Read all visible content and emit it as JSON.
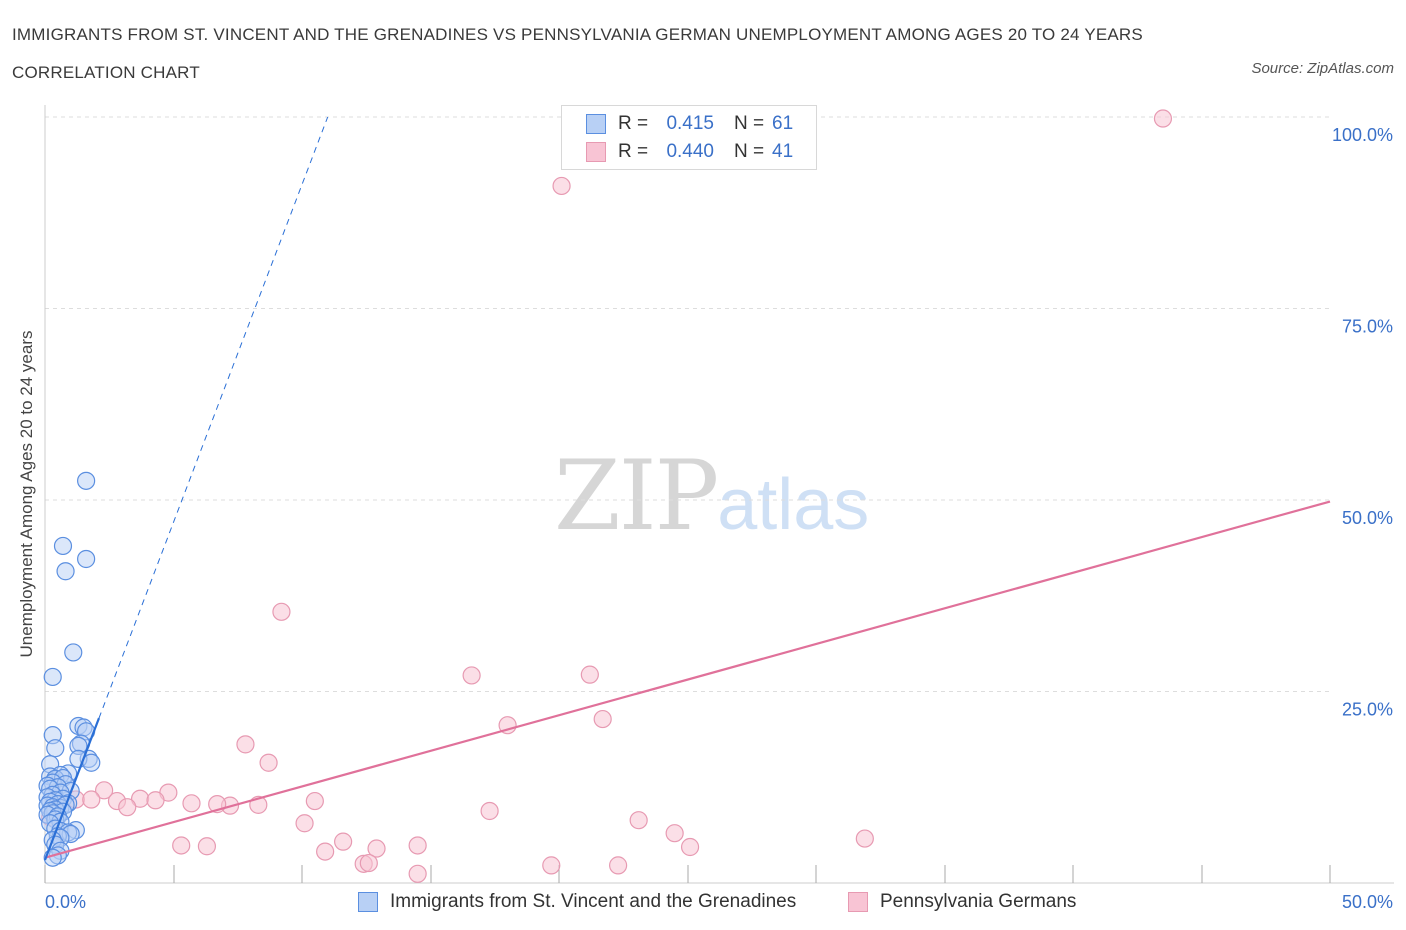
{
  "header": {
    "title": "IMMIGRANTS FROM ST. VINCENT AND THE GRENADINES VS PENNSYLVANIA GERMAN UNEMPLOYMENT AMONG AGES 20 TO 24 YEARS CORRELATION CHART",
    "source": "Source: ZipAtlas.com"
  },
  "watermark": {
    "zip": "ZIP",
    "atlas": "atlas"
  },
  "legend": {
    "r_label": "R =",
    "n_label": "N =",
    "rows": [
      {
        "r": "0.415",
        "n": "61"
      },
      {
        "r": "0.440",
        "n": "41"
      }
    ]
  },
  "colors": {
    "blue_fill": "#b8d0f5",
    "blue_stroke": "#5b8fe0",
    "blue_line": "#2a6fd6",
    "pink_fill": "#f8c4d4",
    "pink_stroke": "#e79ab2",
    "pink_line": "#e0719a",
    "tick_label": "#3a70c8",
    "grid": "#dddddd"
  },
  "chart_data": {
    "type": "scatter",
    "title": "IMMIGRANTS FROM ST. VINCENT AND THE GRENADINES VS PENNSYLVANIA GERMAN UNEMPLOYMENT AMONG AGES 20 TO 24 YEARS CORRELATION CHART",
    "xlabel": "",
    "ylabel": "Unemployment Among Ages 20 to 24 years",
    "xlim": [
      0,
      50
    ],
    "ylim": [
      0,
      100
    ],
    "x_tick_labels": [
      "0.0%",
      "50.0%"
    ],
    "y_tick_labels": [
      "25.0%",
      "50.0%",
      "75.0%",
      "100.0%"
    ],
    "y_tick_values": [
      25,
      50,
      75,
      100
    ],
    "grid": true,
    "legend_position": "top-center",
    "series": [
      {
        "name": "Immigrants from St. Vincent and the Grenadines",
        "R": 0.415,
        "N": 61,
        "trend": {
          "x0": 0,
          "y0": 3,
          "x1": 11,
          "y1": 100,
          "solid_until_x": 2.1
        },
        "points": [
          [
            1.6,
            52.5
          ],
          [
            0.7,
            44.0
          ],
          [
            1.6,
            42.3
          ],
          [
            0.8,
            40.7
          ],
          [
            1.1,
            30.1
          ],
          [
            0.3,
            26.9
          ],
          [
            1.3,
            20.5
          ],
          [
            1.5,
            20.3
          ],
          [
            1.6,
            19.8
          ],
          [
            0.3,
            19.3
          ],
          [
            1.4,
            18.2
          ],
          [
            1.3,
            17.9
          ],
          [
            0.4,
            17.6
          ],
          [
            1.7,
            16.2
          ],
          [
            1.3,
            16.2
          ],
          [
            1.8,
            15.7
          ],
          [
            0.2,
            15.5
          ],
          [
            0.9,
            14.3
          ],
          [
            0.6,
            14.1
          ],
          [
            0.2,
            13.9
          ],
          [
            0.4,
            13.6
          ],
          [
            0.7,
            13.7
          ],
          [
            0.3,
            13.1
          ],
          [
            0.8,
            12.9
          ],
          [
            0.1,
            12.7
          ],
          [
            0.5,
            12.5
          ],
          [
            0.2,
            12.3
          ],
          [
            1.0,
            12.0
          ],
          [
            0.6,
            11.8
          ],
          [
            0.3,
            11.5
          ],
          [
            0.1,
            11.2
          ],
          [
            0.7,
            11.0
          ],
          [
            0.4,
            10.8
          ],
          [
            0.2,
            10.6
          ],
          [
            0.9,
            10.4
          ],
          [
            0.5,
            10.3
          ],
          [
            0.1,
            10.1
          ],
          [
            0.3,
            9.9
          ],
          [
            0.6,
            9.8
          ],
          [
            0.8,
            10.2
          ],
          [
            0.4,
            9.6
          ],
          [
            0.2,
            9.4
          ],
          [
            0.7,
            9.3
          ],
          [
            0.3,
            9.1
          ],
          [
            0.1,
            8.9
          ],
          [
            0.5,
            8.7
          ],
          [
            0.4,
            8.3
          ],
          [
            0.6,
            8.0
          ],
          [
            0.2,
            7.8
          ],
          [
            0.4,
            7.1
          ],
          [
            0.6,
            6.8
          ],
          [
            1.2,
            6.9
          ],
          [
            0.9,
            6.6
          ],
          [
            1.0,
            6.4
          ],
          [
            0.5,
            6.1
          ],
          [
            0.6,
            5.9
          ],
          [
            0.3,
            5.6
          ],
          [
            0.4,
            5.0
          ],
          [
            0.6,
            4.2
          ],
          [
            0.5,
            3.6
          ],
          [
            0.3,
            3.3
          ]
        ]
      },
      {
        "name": "Pennsylvania Germans",
        "R": 0.44,
        "N": 41,
        "trend": {
          "x0": 0,
          "y0": 3.3,
          "x1": 50,
          "y1": 49.8
        },
        "points": [
          [
            43.5,
            99.8
          ],
          [
            20.1,
            91.0
          ],
          [
            9.2,
            35.4
          ],
          [
            16.6,
            27.1
          ],
          [
            21.2,
            27.2
          ],
          [
            18.0,
            20.6
          ],
          [
            21.7,
            21.4
          ],
          [
            7.8,
            18.1
          ],
          [
            8.7,
            15.7
          ],
          [
            2.3,
            12.1
          ],
          [
            4.8,
            11.8
          ],
          [
            1.2,
            10.9
          ],
          [
            3.7,
            11.0
          ],
          [
            4.3,
            10.8
          ],
          [
            2.8,
            10.7
          ],
          [
            1.8,
            10.9
          ],
          [
            7.2,
            10.1
          ],
          [
            10.5,
            10.7
          ],
          [
            8.3,
            10.2
          ],
          [
            6.7,
            10.3
          ],
          [
            3.2,
            9.9
          ],
          [
            5.7,
            10.4
          ],
          [
            0.4,
            9.8
          ],
          [
            17.3,
            9.4
          ],
          [
            0.2,
            8.6
          ],
          [
            10.1,
            7.8
          ],
          [
            23.1,
            8.2
          ],
          [
            24.5,
            6.5
          ],
          [
            31.9,
            5.8
          ],
          [
            11.6,
            5.4
          ],
          [
            12.9,
            4.5
          ],
          [
            14.5,
            4.9
          ],
          [
            5.3,
            4.9
          ],
          [
            6.3,
            4.8
          ],
          [
            25.1,
            4.7
          ],
          [
            10.9,
            4.1
          ],
          [
            12.4,
            2.5
          ],
          [
            12.6,
            2.6
          ],
          [
            19.7,
            2.3
          ],
          [
            22.3,
            2.3
          ],
          [
            14.5,
            1.2
          ]
        ]
      }
    ]
  }
}
